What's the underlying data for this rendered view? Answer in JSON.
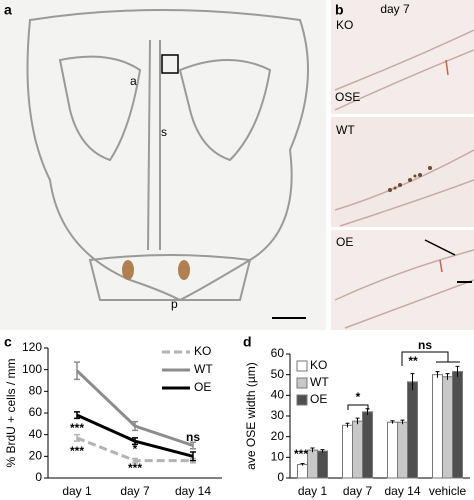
{
  "figure": {
    "panel_labels": [
      "a",
      "b",
      "c",
      "d"
    ],
    "panel_a": {
      "labels": [
        "a",
        "s",
        "p"
      ]
    },
    "panel_b": {
      "title": "day 7",
      "labels": [
        "KO",
        "OSE",
        "WT",
        "OE"
      ]
    }
  },
  "chart_data": [
    {
      "type": "line",
      "y_label": "% BrdU + cells / mm",
      "categories": [
        "day 1",
        "day 7",
        "day 14"
      ],
      "ylim": [
        0,
        120
      ],
      "yticks": [
        0,
        20,
        40,
        60,
        80,
        100,
        120
      ],
      "series": [
        {
          "name": "KO",
          "color": "#b3b3b3",
          "line_style": "dashed",
          "values": [
            37,
            16,
            16
          ],
          "errors": [
            3,
            2,
            2
          ]
        },
        {
          "name": "WT",
          "color": "#8c8c8c",
          "line_style": "solid",
          "values": [
            99,
            48,
            30
          ],
          "errors": [
            8,
            4,
            3
          ]
        },
        {
          "name": "OE",
          "color": "#000000",
          "line_style": "solid",
          "values": [
            58,
            34,
            20
          ],
          "errors": [
            3,
            3,
            4
          ]
        }
      ],
      "annotations": [
        "***",
        "***",
        "*",
        "***",
        "ns"
      ],
      "legend": "upper right"
    },
    {
      "type": "bar",
      "y_label": "ave OSE width (µm)",
      "categories": [
        "day 1",
        "day 7",
        "day 14",
        "vehicle"
      ],
      "ylim": [
        0,
        60
      ],
      "yticks": [
        0,
        10,
        20,
        30,
        40,
        50,
        60
      ],
      "series": [
        {
          "name": "KO",
          "color": "#ffffff",
          "values": [
            6.5,
            25.5,
            27,
            50
          ],
          "errors": [
            0.5,
            1,
            0.7,
            1.5
          ]
        },
        {
          "name": "WT",
          "color": "#c8c8c8",
          "values": [
            13.5,
            27.5,
            27,
            49
          ],
          "errors": [
            1,
            1.5,
            1,
            1.5
          ]
        },
        {
          "name": "OE",
          "color": "#4f4f4f",
          "values": [
            13,
            32,
            46.5,
            51.5
          ],
          "errors": [
            0.7,
            1.5,
            4,
            2.5
          ]
        }
      ],
      "annotations": [
        "***",
        "*",
        "**",
        "ns"
      ],
      "legend": "upper left"
    }
  ]
}
